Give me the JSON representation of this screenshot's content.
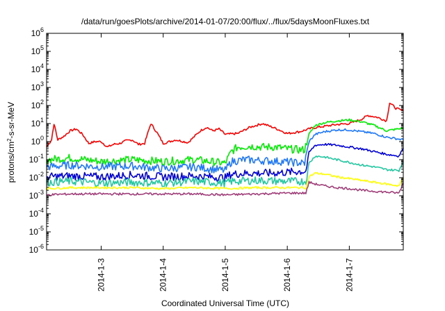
{
  "chart_data": {
    "type": "line",
    "title": "/data/run/goesPlots/archive/2014-01-07/20:00/flux/../flux/5daysMoonFluxes.txt",
    "xlabel": "Coordinated Universal Time (UTC)",
    "ylabel": "protons/cm2-s-sr-MeV",
    "ylabel_parts": {
      "pre": "protons/cm",
      "sup": "2",
      "post": "-s-sr-MeV"
    },
    "yscale": "log",
    "ylim_exp": [
      -6,
      6
    ],
    "y_tick_exponents": [
      -6,
      -5,
      -4,
      -3,
      -2,
      -1,
      0,
      1,
      2,
      3,
      4,
      5,
      6
    ],
    "xlim_days": [
      2.12,
      7.87
    ],
    "x_ticks": [
      {
        "label": "2014-1-3",
        "day": 3
      },
      {
        "label": "2014-1-4",
        "day": 4
      },
      {
        "label": "2014-1-5",
        "day": 5
      },
      {
        "label": "2014-1-6",
        "day": 6
      },
      {
        "label": "2014-1-7",
        "day": 7
      }
    ],
    "grid": false,
    "legend": "none",
    "series": [
      {
        "color": "#ff0000",
        "x": [
          2.12,
          2.2,
          2.24,
          2.3,
          2.4,
          2.5,
          2.6,
          2.7,
          2.8,
          2.9,
          3.0,
          3.1,
          3.2,
          3.3,
          3.4,
          3.5,
          3.6,
          3.7,
          3.8,
          3.9,
          4.0,
          4.2,
          4.4,
          4.6,
          4.7,
          4.8,
          4.9,
          5.0,
          5.2,
          5.4,
          5.6,
          5.8,
          6.0,
          6.2,
          6.3,
          6.4,
          6.6,
          6.8,
          7.0,
          7.2,
          7.3,
          7.45,
          7.6,
          7.65,
          7.75,
          7.87
        ],
        "logy": [
          -0.3,
          0.1,
          1.0,
          0.1,
          0.3,
          0.6,
          0.7,
          0.4,
          -0.1,
          0.0,
          0.0,
          -0.3,
          -0.15,
          -0.1,
          0.05,
          0.1,
          -0.15,
          -0.1,
          1.0,
          0.5,
          -0.1,
          0.1,
          -0.05,
          0.6,
          0.8,
          0.6,
          0.7,
          0.4,
          0.45,
          0.8,
          1.0,
          0.75,
          0.45,
          0.55,
          0.65,
          0.75,
          0.85,
          0.95,
          1.0,
          1.25,
          1.45,
          1.35,
          1.15,
          2.15,
          1.85,
          1.7
        ]
      },
      {
        "color": "#00ee00",
        "x": [
          2.12,
          2.5,
          3.0,
          3.5,
          4.0,
          4.5,
          5.0,
          5.1,
          5.2,
          5.4,
          5.6,
          5.8,
          6.0,
          6.2,
          6.28,
          6.35,
          6.45,
          6.6,
          6.8,
          7.0,
          7.2,
          7.4,
          7.6,
          7.87
        ],
        "logy": [
          -1.0,
          -0.9,
          -1.1,
          -1.0,
          -1.1,
          -1.0,
          -1.2,
          -0.55,
          -0.3,
          -0.25,
          -0.3,
          -0.3,
          -0.4,
          -0.45,
          -0.45,
          0.4,
          0.9,
          1.05,
          1.15,
          1.2,
          1.1,
          0.9,
          0.6,
          0.75
        ]
      },
      {
        "color": "#1e78ff",
        "x": [
          2.12,
          2.5,
          3.0,
          3.5,
          4.0,
          4.5,
          5.0,
          5.1,
          5.3,
          5.6,
          5.9,
          6.1,
          6.28,
          6.35,
          6.45,
          6.6,
          6.8,
          7.0,
          7.2,
          7.4,
          7.6,
          7.87
        ],
        "logy": [
          -1.4,
          -1.3,
          -1.4,
          -1.35,
          -1.5,
          -1.4,
          -1.6,
          -1.1,
          -1.0,
          -1.05,
          -1.1,
          -1.15,
          -1.2,
          0.0,
          0.4,
          0.55,
          0.65,
          0.65,
          0.55,
          0.45,
          0.25,
          0.1
        ]
      },
      {
        "color": "#0000dd",
        "x": [
          2.12,
          2.5,
          3.0,
          3.5,
          4.0,
          4.5,
          5.0,
          5.1,
          5.4,
          5.7,
          6.0,
          6.2,
          6.3,
          6.35,
          6.45,
          6.6,
          6.8,
          7.0,
          7.2,
          7.4,
          7.6,
          7.8,
          7.87
        ],
        "logy": [
          -1.95,
          -1.9,
          -1.95,
          -1.85,
          -1.95,
          -1.9,
          -2.0,
          -1.8,
          -1.75,
          -1.75,
          -1.7,
          -1.65,
          -1.65,
          -0.6,
          -0.2,
          -0.15,
          -0.2,
          -0.3,
          -0.4,
          -0.55,
          -0.7,
          -0.8,
          -0.35
        ]
      },
      {
        "color": "#20c8a0",
        "x": [
          2.12,
          2.5,
          3.0,
          3.5,
          4.0,
          4.5,
          5.0,
          5.1,
          5.5,
          6.0,
          6.3,
          6.35,
          6.45,
          6.6,
          6.8,
          7.0,
          7.2,
          7.4,
          7.6,
          7.8,
          7.87
        ],
        "logy": [
          -2.25,
          -2.2,
          -2.3,
          -2.25,
          -2.3,
          -2.2,
          -2.3,
          -2.2,
          -2.15,
          -2.2,
          -2.2,
          -1.2,
          -0.8,
          -0.85,
          -1.0,
          -1.15,
          -1.3,
          -1.4,
          -1.55,
          -1.6,
          -1.1
        ]
      },
      {
        "color": "#ffff00",
        "x": [
          2.12,
          2.5,
          3.0,
          3.5,
          4.0,
          4.5,
          5.0,
          5.5,
          6.0,
          6.3,
          6.35,
          6.45,
          6.6,
          6.8,
          7.0,
          7.2,
          7.4,
          7.6,
          7.8,
          7.87
        ],
        "logy": [
          -2.6,
          -2.55,
          -2.55,
          -2.55,
          -2.6,
          -2.55,
          -2.6,
          -2.55,
          -2.55,
          -2.55,
          -1.95,
          -1.75,
          -1.8,
          -1.95,
          -2.05,
          -2.15,
          -2.25,
          -2.35,
          -2.45,
          -2.0
        ]
      },
      {
        "color": "#a03c78",
        "x": [
          2.12,
          2.5,
          3.0,
          3.5,
          4.0,
          4.5,
          5.0,
          5.5,
          6.0,
          6.3,
          6.35,
          6.45,
          6.6,
          6.8,
          7.0,
          7.2,
          7.4,
          7.6,
          7.8,
          7.87
        ],
        "logy": [
          -2.95,
          -2.9,
          -2.9,
          -2.9,
          -2.9,
          -2.9,
          -2.95,
          -2.9,
          -2.85,
          -2.85,
          -2.25,
          -2.35,
          -2.45,
          -2.55,
          -2.6,
          -2.7,
          -2.75,
          -2.8,
          -2.85,
          -2.3
        ]
      }
    ]
  }
}
